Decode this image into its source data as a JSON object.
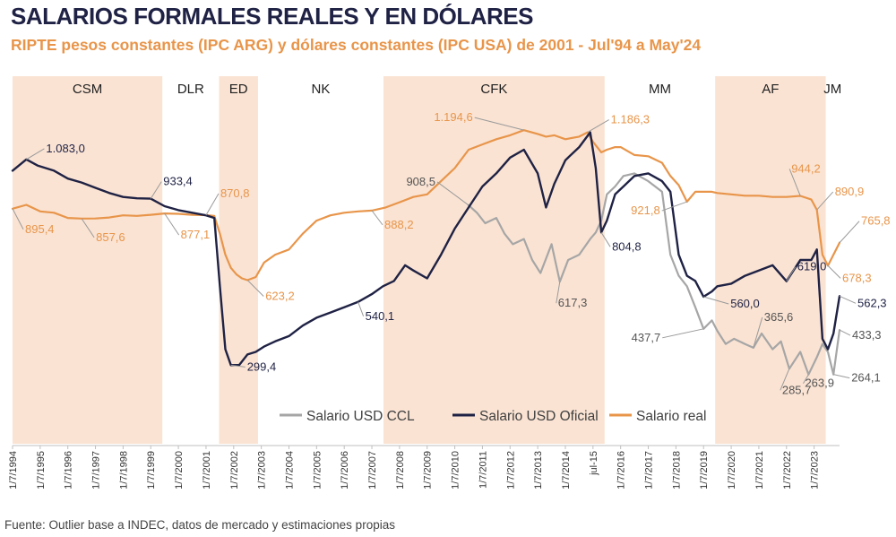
{
  "title": "SALARIOS FORMALES REALES Y EN DÓLARES",
  "subtitle": "RIPTE pesos constantes (IPC ARG) y dólares constantes (IPC USA) de 2001 - Jul'94 a May'24",
  "source": "Fuente: Outlier base a INDEC, datos de mercado y estimaciones propias",
  "colors": {
    "title": "#1f2244",
    "subtitle": "#e8954a",
    "period_shade": "#fae3d3",
    "salario_real": "#e8954a",
    "salario_oficial": "#1f2244",
    "salario_ccl": "#a6a6a6",
    "label_line": "#9a9a9a"
  },
  "chart_data": {
    "type": "line",
    "x_range": [
      1994.5,
      2024.42
    ],
    "y_range": [
      0,
      1400
    ],
    "tick_labels": [
      "1/7/1994",
      "1/7/1995",
      "1/7/1996",
      "1/7/1997",
      "1/7/1998",
      "1/7/1999",
      "1/7/2000",
      "1/7/2001",
      "1/7/2002",
      "1/7/2003",
      "1/7/2004",
      "1/7/2005",
      "1/7/2006",
      "1/7/2007",
      "1/7/2008",
      "1/7/2009",
      "1/7/2010",
      "1/7/2011",
      "1/7/2012",
      "1/7/2013",
      "1/7/2014",
      "jul-15",
      "1/7/2016",
      "1/7/2017",
      "1/7/2018",
      "1/7/2019",
      "1/7/2020",
      "1/7/2021",
      "1/7/2022",
      "1/7/2023"
    ],
    "tick_values": [
      1994.5,
      1995.5,
      1996.5,
      1997.5,
      1998.5,
      1999.5,
      2000.5,
      2001.5,
      2002.5,
      2003.5,
      2004.5,
      2005.5,
      2006.5,
      2007.5,
      2008.5,
      2009.5,
      2010.5,
      2011.5,
      2012.5,
      2013.5,
      2014.5,
      2015.5,
      2016.5,
      2017.5,
      2018.5,
      2019.5,
      2020.5,
      2021.5,
      2022.5,
      2023.5
    ],
    "periods": [
      {
        "label": "CSM",
        "start": 1994.5,
        "end": 1999.92,
        "shaded": true
      },
      {
        "label": "DLR",
        "start": 1999.92,
        "end": 2001.97,
        "shaded": false
      },
      {
        "label": "ED",
        "start": 2001.97,
        "end": 2003.38,
        "shaded": true
      },
      {
        "label": "NK",
        "start": 2003.38,
        "end": 2007.92,
        "shaded": false
      },
      {
        "label": "CFK",
        "start": 2007.92,
        "end": 2015.92,
        "shaded": true
      },
      {
        "label": "MM",
        "start": 2015.92,
        "end": 2019.92,
        "shaded": false
      },
      {
        "label": "AF",
        "start": 2019.92,
        "end": 2023.92,
        "shaded": true
      },
      {
        "label": "JM",
        "start": 2023.92,
        "end": 2024.42,
        "shaded": false
      }
    ],
    "series": [
      {
        "name": "Salario real",
        "key": "salario_real",
        "x": [
          1994.5,
          1995.0,
          1995.5,
          1996.0,
          1996.5,
          1997.0,
          1997.5,
          1998.0,
          1998.5,
          1999.0,
          1999.5,
          2000.0,
          2000.5,
          2001.0,
          2001.5,
          2001.8,
          2002.0,
          2002.2,
          2002.4,
          2002.6,
          2002.8,
          2003.0,
          2003.3,
          2003.6,
          2004.0,
          2004.5,
          2005.0,
          2005.5,
          2006.0,
          2006.5,
          2007.0,
          2007.5,
          2008.0,
          2008.5,
          2009.0,
          2009.5,
          2010.0,
          2010.5,
          2011.0,
          2011.5,
          2012.0,
          2012.5,
          2013.0,
          2013.5,
          2013.8,
          2014.1,
          2014.5,
          2015.0,
          2015.3,
          2015.5,
          2015.8,
          2016.0,
          2016.3,
          2016.5,
          2017.0,
          2017.5,
          2018.0,
          2018.3,
          2018.6,
          2018.9,
          2019.2,
          2019.5,
          2019.8,
          2020.0,
          2020.5,
          2021.0,
          2021.5,
          2022.0,
          2022.5,
          2023.0,
          2023.4,
          2023.6,
          2023.8,
          2024.0,
          2024.2,
          2024.42
        ],
        "y": [
          895.4,
          910,
          885,
          880,
          860,
          857.6,
          858,
          862,
          870,
          868,
          872,
          877.1,
          876,
          872,
          870.8,
          868,
          800,
          720,
          670,
          645,
          630,
          623.2,
          635,
          690,
          720,
          740,
          800,
          850,
          870,
          880,
          885,
          888.2,
          900,
          920,
          940,
          950,
          1000,
          1050,
          1120,
          1140,
          1160,
          1175,
          1194.6,
          1180,
          1170,
          1175,
          1160,
          1170,
          1186.3,
          1150,
          1110,
          1120,
          1130,
          1130,
          1100,
          1095,
          1070,
          1020,
          985,
          921.8,
          960,
          960,
          960,
          955,
          950,
          945,
          945,
          940,
          940,
          944.2,
          930,
          890.9,
          720,
          678.3,
          720,
          765.8
        ],
        "annotations": [
          {
            "text": "895,4",
            "x": 1994.5,
            "y": 895.4
          },
          {
            "text": "857,6",
            "x": 1997.0,
            "y": 857.6
          },
          {
            "text": "877,1",
            "x": 2000.0,
            "y": 877.1
          },
          {
            "text": "870,8",
            "x": 2001.5,
            "y": 870.8
          },
          {
            "text": "623,2",
            "x": 2003.0,
            "y": 623.2
          },
          {
            "text": "888,2",
            "x": 2007.5,
            "y": 888.2
          },
          {
            "text": "1.194,6",
            "x": 2013.0,
            "y": 1194.6
          },
          {
            "text": "1.186,3",
            "x": 2015.3,
            "y": 1186.3
          },
          {
            "text": "921,8",
            "x": 2018.9,
            "y": 921.8
          },
          {
            "text": "944,2",
            "x": 2023.0,
            "y": 944.2
          },
          {
            "text": "890,9",
            "x": 2023.6,
            "y": 890.9
          },
          {
            "text": "678,3",
            "x": 2024.0,
            "y": 678.3
          },
          {
            "text": "765,8",
            "x": 2024.42,
            "y": 765.8
          }
        ]
      },
      {
        "name": "Salario USD Oficial",
        "key": "salario_oficial",
        "x": [
          1994.5,
          1995.0,
          1995.4,
          1996.0,
          1996.5,
          1997.0,
          1997.5,
          1998.0,
          1998.5,
          1999.0,
          1999.5,
          2000.0,
          2000.5,
          2001.0,
          2001.5,
          2001.8,
          2002.0,
          2002.2,
          2002.4,
          2002.7,
          2003.0,
          2003.3,
          2003.6,
          2004.0,
          2004.5,
          2005.0,
          2005.5,
          2006.0,
          2006.5,
          2007.0,
          2007.5,
          2007.9,
          2008.3,
          2008.7,
          2009.0,
          2009.5,
          2010.0,
          2010.5,
          2011.0,
          2011.5,
          2012.0,
          2012.5,
          2013.0,
          2013.5,
          2013.8,
          2014.1,
          2014.5,
          2015.0,
          2015.4,
          2015.6,
          2015.8,
          2016.0,
          2016.3,
          2016.6,
          2017.0,
          2017.5,
          2018.0,
          2018.3,
          2018.6,
          2018.9,
          2019.2,
          2019.5,
          2019.8,
          2020.0,
          2020.5,
          2021.0,
          2021.5,
          2022.0,
          2022.5,
          2023.0,
          2023.4,
          2023.6,
          2023.8,
          2024.0,
          2024.2,
          2024.42
        ],
        "y": [
          1040,
          1083,
          1060,
          1040,
          1010,
          995,
          975,
          955,
          940,
          935,
          933.4,
          905,
          890,
          880,
          870,
          860,
          600,
          360,
          299.4,
          300,
          340,
          350,
          370,
          390,
          410,
          450,
          480,
          500,
          520,
          540.1,
          570,
          600,
          620,
          680,
          660,
          630,
          720,
          820,
          900,
          980,
          1030,
          1090,
          1120,
          1030,
          900,
          990,
          1080,
          1130,
          1186.3,
          1050,
          804.8,
          850,
          950,
          980,
          1020,
          1030,
          1000,
          960,
          720,
          640,
          620,
          560.0,
          580,
          600,
          610,
          640,
          660,
          680,
          619.0,
          700,
          700,
          740,
          400,
          360,
          420,
          562.3
        ],
        "annotations": [
          {
            "text": "1.083,0",
            "x": 1995.0,
            "y": 1083
          },
          {
            "text": "933,4",
            "x": 1999.5,
            "y": 933.4
          },
          {
            "text": "299,4",
            "x": 2002.4,
            "y": 299.4
          },
          {
            "text": "540,1",
            "x": 2007.0,
            "y": 540.1
          },
          {
            "text": "804,8",
            "x": 2015.8,
            "y": 804.8
          },
          {
            "text": "560,0",
            "x": 2019.5,
            "y": 560.0
          },
          {
            "text": "619,0",
            "x": 2022.5,
            "y": 619.0
          },
          {
            "text": "562,3",
            "x": 2024.42,
            "y": 562.3
          }
        ]
      },
      {
        "name": "Salario USD CCL",
        "key": "salario_ccl",
        "x": [
          2011.0,
          2011.3,
          2011.6,
          2012.0,
          2012.3,
          2012.6,
          2013.0,
          2013.3,
          2013.6,
          2014.0,
          2014.3,
          2014.6,
          2015.0,
          2015.4,
          2015.6,
          2015.8,
          2016.0,
          2016.3,
          2016.6,
          2017.0,
          2017.5,
          2018.0,
          2018.3,
          2018.6,
          2018.9,
          2019.2,
          2019.5,
          2019.8,
          2020.0,
          2020.3,
          2020.6,
          2021.0,
          2021.3,
          2021.6,
          2022.0,
          2022.3,
          2022.6,
          2023.0,
          2023.3,
          2023.6,
          2023.8,
          2024.0,
          2024.2,
          2024.42
        ],
        "y": [
          908.5,
          880,
          840,
          860,
          800,
          760,
          780,
          700,
          650,
          760,
          617.3,
          700,
          720,
          780,
          804.8,
          850,
          950,
          980,
          1020,
          1030,
          1000,
          960,
          720,
          640,
          600,
          520,
          437.7,
          470,
          430,
          380,
          400,
          380,
          365.6,
          420,
          360,
          390,
          285.7,
          350,
          263.9,
          330,
          380,
          350,
          264.1,
          433.3
        ],
        "annotations": [
          {
            "text": "908,5",
            "x": 2011.0,
            "y": 908.5
          },
          {
            "text": "617,3",
            "x": 2014.3,
            "y": 617.3
          },
          {
            "text": "437,7",
            "x": 2019.5,
            "y": 437.7
          },
          {
            "text": "365,6",
            "x": 2021.3,
            "y": 365.6
          },
          {
            "text": "285,7",
            "x": 2022.6,
            "y": 285.7
          },
          {
            "text": "263,9",
            "x": 2023.3,
            "y": 263.9
          },
          {
            "text": "264,1",
            "x": 2024.2,
            "y": 264.1
          },
          {
            "text": "433,3",
            "x": 2024.42,
            "y": 433.3
          }
        ]
      }
    ],
    "legend": {
      "placement": "bottom-center",
      "items": [
        {
          "label": "Salario USD CCL",
          "key": "salario_ccl"
        },
        {
          "label": "Salario USD Oficial",
          "key": "salario_oficial"
        },
        {
          "label": "Salario real",
          "key": "salario_real"
        }
      ]
    }
  }
}
